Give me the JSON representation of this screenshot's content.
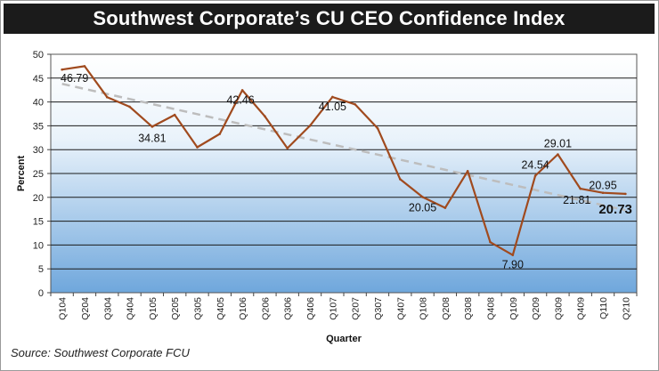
{
  "title": "Southwest Corporate’s CU CEO Confidence Index",
  "source": "Source: Southwest Corporate FCU",
  "chart_data": {
    "type": "line",
    "xlabel": "Quarter",
    "ylabel": "Percent",
    "ylim": [
      0,
      50
    ],
    "yticks": [
      0,
      5,
      10,
      15,
      20,
      25,
      30,
      35,
      40,
      45,
      50
    ],
    "grid": true,
    "legend": "none",
    "categories": [
      "Q104",
      "Q204",
      "Q304",
      "Q404",
      "Q105",
      "Q205",
      "Q305",
      "Q405",
      "Q106",
      "Q206",
      "Q306",
      "Q406",
      "Q107",
      "Q207",
      "Q307",
      "Q407",
      "Q108",
      "Q208",
      "Q308",
      "Q408",
      "Q109",
      "Q209",
      "Q309",
      "Q409",
      "Q110",
      "Q210"
    ],
    "series": [
      {
        "values": [
          46.79,
          47.5,
          41.0,
          39.0,
          34.81,
          37.3,
          30.5,
          33.3,
          42.46,
          37.0,
          30.3,
          35.0,
          41.05,
          39.5,
          34.5,
          23.8,
          20.05,
          17.8,
          25.5,
          10.6,
          7.9,
          24.54,
          29.01,
          21.81,
          20.95,
          20.73
        ],
        "color": "#a04a1e"
      }
    ],
    "trendline": {
      "start": 43.8,
      "end": 17.3,
      "color": "#bdbdbd",
      "style": "dashed"
    },
    "data_labels": [
      {
        "index": 0,
        "text": "46.79"
      },
      {
        "index": 4,
        "text": "34.81"
      },
      {
        "index": 8,
        "text": "42.46"
      },
      {
        "index": 12,
        "text": "41.05"
      },
      {
        "index": 16,
        "text": "20.05"
      },
      {
        "index": 20,
        "text": "7.90"
      },
      {
        "index": 21,
        "text": "24.54"
      },
      {
        "index": 22,
        "text": "29.01"
      },
      {
        "index": 23,
        "text": "21.81"
      },
      {
        "index": 24,
        "text": "20.95"
      },
      {
        "index": 25,
        "text": "20.73",
        "bold": true
      }
    ],
    "colors": {
      "background_top": "#ffffff",
      "background_bottom": "#6fa7dc",
      "gridline": "#1a1a1a",
      "axis": "#444444"
    }
  }
}
